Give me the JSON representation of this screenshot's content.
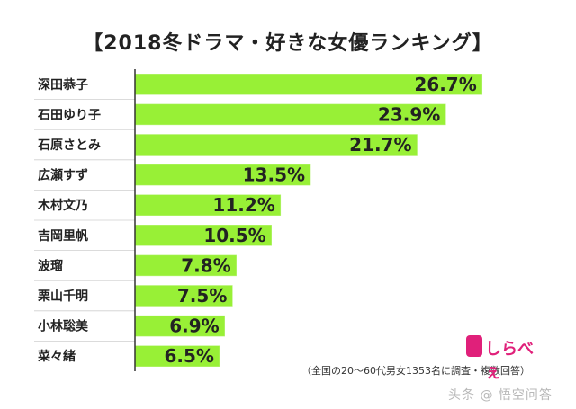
{
  "chart_data": {
    "type": "bar",
    "orientation": "horizontal",
    "title": "【2018冬ドラマ・好きな女優ランキング】",
    "categories": [
      "深田恭子",
      "石田ゆり子",
      "石原さとみ",
      "広瀬すず",
      "木村文乃",
      "吉岡里帆",
      "波瑠",
      "栗山千明",
      "小林聡美",
      "菜々緒"
    ],
    "values": [
      26.7,
      23.9,
      21.7,
      13.5,
      11.2,
      10.5,
      7.8,
      7.5,
      6.9,
      6.5
    ],
    "value_labels": [
      "26.7%",
      "23.9%",
      "21.7%",
      "13.5%",
      "11.2%",
      "10.5%",
      "7.8%",
      "7.5%",
      "6.9%",
      "6.5%"
    ],
    "xlim": [
      0,
      29
    ],
    "grid": false,
    "bar_color": "#98f036"
  },
  "footer": {
    "note": "（全国の20～60代男女1353名に調査・複数回答）",
    "logo_text": "しらべぇ",
    "watermark": "头条 @ 悟空问答"
  }
}
